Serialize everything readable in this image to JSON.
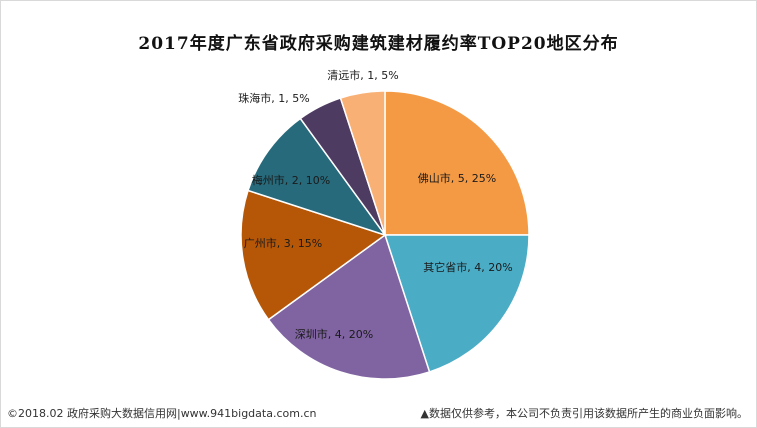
{
  "chart_data": {
    "type": "pie",
    "title": "2017年度广东省政府采购建筑建材履约率TOP20地区分布",
    "slices": [
      {
        "name": "佛山市",
        "value": 5,
        "percent": 25,
        "label": "佛山市, 5, 25%",
        "color": "#F59A44"
      },
      {
        "name": "其它省市",
        "value": 4,
        "percent": 20,
        "label": "其它省市, 4, 20%",
        "color": "#4BACC6"
      },
      {
        "name": "深圳市",
        "value": 4,
        "percent": 20,
        "label": "深圳市, 4, 20%",
        "color": "#8064A2"
      },
      {
        "name": "广州市",
        "value": 3,
        "percent": 15,
        "label": "广州市, 3, 15%",
        "color": "#B65708"
      },
      {
        "name": "梅州市",
        "value": 2,
        "percent": 10,
        "label": "梅州市, 2, 10%",
        "color": "#276A7C"
      },
      {
        "name": "珠海市",
        "value": 1,
        "percent": 5,
        "label": "珠海市, 1, 5%",
        "color": "#4E3B62"
      },
      {
        "name": "清远市",
        "value": 1,
        "percent": 5,
        "label": "清远市, 1, 5%",
        "color": "#F9B074"
      }
    ]
  },
  "footer": {
    "source": "©2018.02 政府采购大数据信用网|www.941bigdata.com.cn",
    "disclaimer": "▲数据仅供参考，本公司不负责引用该数据所产生的商业负面影响。"
  }
}
